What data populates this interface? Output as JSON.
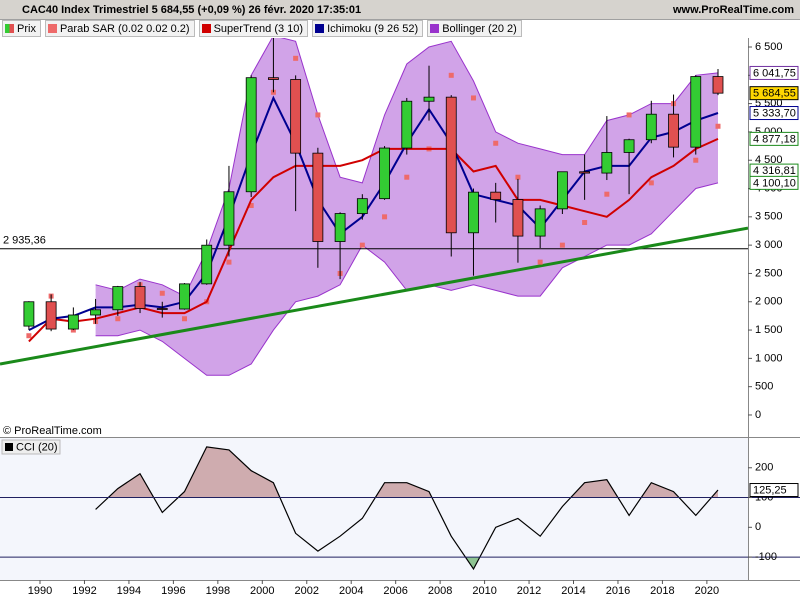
{
  "chart_data": [
    {
      "type": "candlestick",
      "title": "CAC40 Index Trimestriel 5 684,55 (+0,09 %) 26 févr. 2020 17:35:01",
      "website": "www.ProRealTime.com",
      "source": "© ProRealTime.com",
      "name": "Prix",
      "up_color": "#33cc33",
      "down_color": "#e05050",
      "x": [
        1989,
        1990,
        1991,
        1992,
        1993,
        1994,
        1995,
        1996,
        1997,
        1998,
        1999,
        2000,
        2001,
        2002,
        2003,
        2004,
        2005,
        2006,
        2007,
        2008,
        2009,
        2010,
        2011,
        2012,
        2013,
        2014,
        2015,
        2016,
        2017,
        2018,
        2019,
        2020
      ],
      "open": [
        1570,
        2000,
        1518,
        1766,
        1858,
        2268,
        1881,
        1872,
        2316,
        2999,
        3943,
        5958,
        5926,
        4625,
        3064,
        3558,
        3821,
        4715,
        5542,
        5614,
        3218,
        3936,
        3805,
        3160,
        3641,
        4296,
        4273,
        4637,
        4862,
        5313,
        4731,
        5978
      ],
      "high": [
        2010,
        2130,
        1900,
        2050,
        2280,
        2350,
        2000,
        2330,
        3100,
        4400,
        6000,
        6944,
        5999,
        4720,
        3580,
        3900,
        4750,
        5600,
        6170,
        5650,
        4000,
        4100,
        4170,
        3700,
        4300,
        4600,
        5280,
        4880,
        5550,
        5660,
        6000,
        6111
      ],
      "low": [
        1500,
        1480,
        1500,
        1610,
        1750,
        1800,
        1720,
        1860,
        2300,
        2800,
        3850,
        5700,
        3600,
        2600,
        2400,
        3450,
        3800,
        4600,
        5200,
        2800,
        2460,
        3400,
        2690,
        2950,
        3550,
        3800,
        4150,
        3900,
        4800,
        4550,
        4600,
        5650
      ],
      "close": [
        2000,
        1518,
        1766,
        1858,
        2268,
        1881,
        1872,
        2316,
        2999,
        3943,
        5958,
        5926,
        4625,
        3064,
        3558,
        3821,
        4715,
        5542,
        5614,
        3218,
        3936,
        3805,
        3160,
        3641,
        4296,
        4273,
        4637,
        4862,
        5313,
        4731,
        5978,
        5684.55
      ],
      "series": [
        {
          "name": "Parab SAR (0.02 0.02 0.2)",
          "style": "dots",
          "color": "#ee6a6a",
          "values": [
            1400,
            2100,
            1500,
            1650,
            1700,
            2300,
            2150,
            1700,
            2000,
            2700,
            3700,
            5700,
            6300,
            5300,
            2500,
            3000,
            3500,
            4200,
            4700,
            6000,
            5600,
            4800,
            4200,
            2700,
            3000,
            3400,
            3900,
            5300,
            4100,
            5500,
            4500,
            5100
          ]
        },
        {
          "name": "SuperTrend (3 10)",
          "style": "line",
          "color": "#d00000",
          "values": [
            1300,
            1700,
            1650,
            1700,
            1800,
            1900,
            1800,
            1800,
            2000,
            2900,
            3800,
            4200,
            4400,
            4400,
            4400,
            4500,
            4700,
            4700,
            4700,
            4700,
            4300,
            4400,
            3800,
            3800,
            3700,
            3600,
            3500,
            3800,
            4200,
            4400,
            4700,
            4877.18
          ]
        },
        {
          "name": "Ichimoku (9 26 52)",
          "style": "line",
          "color": "#000090",
          "values": [
            1500,
            1700,
            1750,
            1900,
            1900,
            1950,
            1900,
            2000,
            2500,
            3500,
            4600,
            5600,
            4800,
            3800,
            3200,
            3500,
            4100,
            4800,
            5400,
            4800,
            3900,
            3800,
            3700,
            3300,
            3800,
            4300,
            4400,
            4400,
            4900,
            5000,
            5200,
            5333.7
          ]
        },
        {
          "name": "Bollinger (20 2)",
          "style": "band",
          "color": "#9933cc",
          "upper": [
            null,
            null,
            null,
            2300,
            2200,
            2400,
            2300,
            2100,
            2900,
            4000,
            6000,
            6700,
            6600,
            5300,
            4200,
            4100,
            5300,
            6200,
            6500,
            6600,
            5900,
            5000,
            4800,
            4700,
            4600,
            4600,
            5200,
            5300,
            5500,
            5500,
            6000,
            6041.75
          ],
          "lower": [
            null,
            null,
            null,
            1400,
            1400,
            1500,
            1300,
            1000,
            700,
            700,
            900,
            1500,
            2000,
            2100,
            2300,
            3000,
            2700,
            2200,
            2300,
            2200,
            2300,
            2200,
            2100,
            2100,
            2600,
            2800,
            3000,
            3000,
            3200,
            3600,
            4000,
            4100.1
          ]
        }
      ],
      "trendline": {
        "x": [
          1988.2,
          2021.85
        ],
        "values": [
          900,
          3300
        ],
        "color": "#1a8a1a"
      },
      "hline": {
        "value": 2935.36,
        "label": "2 935,36"
      },
      "price_labels": [
        {
          "value": 6041.75,
          "label": "6 041,75",
          "color": "#7030a0"
        },
        {
          "value": 5684.55,
          "label": "5 684,55",
          "color": "#000000",
          "fill": "#ffd700"
        },
        {
          "value": 5333.7,
          "label": "5 333,70",
          "color": "#000090"
        },
        {
          "value": 4877.18,
          "label": "4 877,18",
          "color": "#1a8a1a"
        },
        {
          "value": 4316.81,
          "label": "4 316,81",
          "color": "#1a8a1a"
        },
        {
          "value": 4100.1,
          "label": "4 100,10",
          "color": "#1a8a1a"
        }
      ],
      "xlim": [
        1988.2,
        2021.85
      ],
      "ylim": [
        -389,
        6659
      ],
      "yticks": [
        0,
        500,
        {
          "value": 1000,
          "label": "1 000"
        },
        {
          "value": 1500,
          "label": "1 500"
        },
        {
          "value": 2000,
          "label": "2 000"
        },
        {
          "value": 2500,
          "label": "2 500"
        },
        {
          "value": 3000,
          "label": "3 000"
        },
        {
          "value": 3500,
          "label": "3 500"
        },
        {
          "value": 4000,
          "label": "4 000"
        },
        {
          "value": 4500,
          "label": "4 500"
        },
        {
          "value": 5000,
          "label": "5 000"
        },
        {
          "value": 5500,
          "label": "5 500"
        },
        {
          "value": 6000,
          "label": "6 000"
        },
        {
          "value": 6500,
          "label": "6 500"
        }
      ]
    },
    {
      "type": "line",
      "title": "CCI (20)",
      "color": "#000000",
      "x": [
        1989,
        1990,
        1991,
        1992,
        1993,
        1994,
        1995,
        1996,
        1997,
        1998,
        1999,
        2000,
        2001,
        2002,
        2003,
        2004,
        2005,
        2006,
        2007,
        2008,
        2009,
        2010,
        2011,
        2012,
        2013,
        2014,
        2015,
        2016,
        2017,
        2018,
        2019,
        2020
      ],
      "values": [
        null,
        null,
        null,
        60,
        130,
        180,
        50,
        120,
        270,
        260,
        190,
        150,
        -20,
        -80,
        -30,
        30,
        150,
        150,
        120,
        -30,
        -140,
        0,
        30,
        -30,
        70,
        150,
        160,
        40,
        150,
        120,
        40,
        125.25
      ],
      "value_label": {
        "value": 125.25,
        "label": "125,25"
      },
      "levels": [
        100,
        -100
      ],
      "xlim": [
        1988.2,
        2021.85
      ],
      "xticks": [
        1990,
        1992,
        1994,
        1996,
        1998,
        2000,
        2002,
        2004,
        2006,
        2008,
        2010,
        2012,
        2014,
        2016,
        2018,
        2020
      ],
      "ylim": [
        -177,
        300
      ],
      "yticks": [
        -100,
        0,
        100,
        200
      ]
    }
  ]
}
